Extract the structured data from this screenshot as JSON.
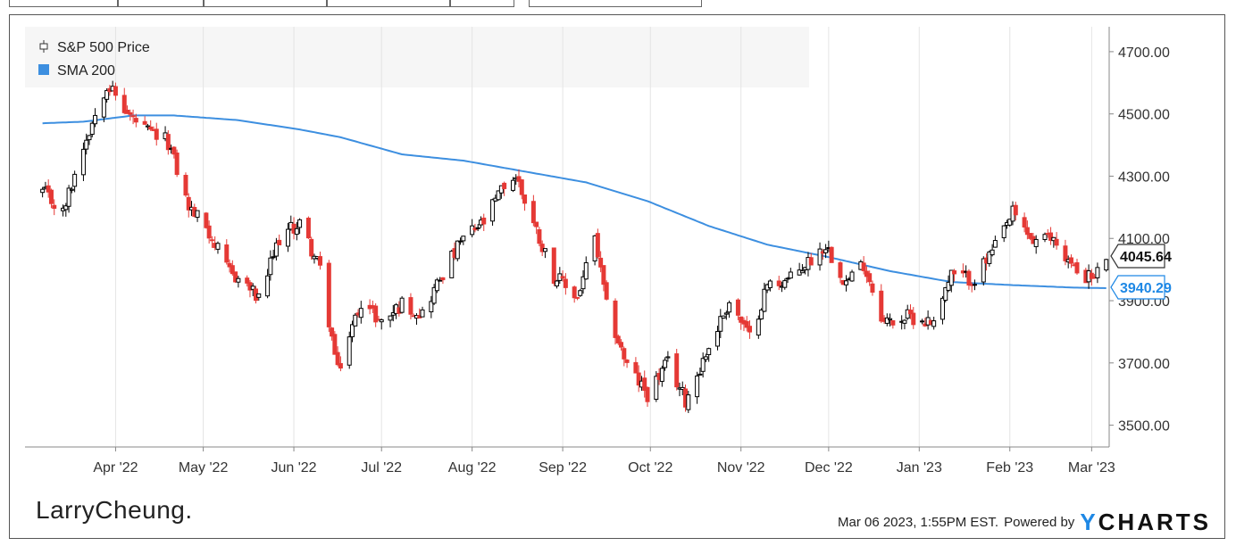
{
  "chart_data": {
    "type": "candlestick",
    "title": "",
    "series": [
      {
        "name": "S&P 500 Price",
        "kind": "candlestick",
        "color_up": "#000000",
        "color_down": "#e53935"
      },
      {
        "name": "SMA 200",
        "kind": "line",
        "color": "#3d8fe0"
      }
    ],
    "x_tick_labels": [
      "Apr '22",
      "May '22",
      "Jun '22",
      "Jul '22",
      "Aug '22",
      "Sep '22",
      "Oct '22",
      "Nov '22",
      "Dec '22",
      "Jan '23",
      "Feb '23",
      "Mar '23"
    ],
    "y_tick_labels": [
      "3500.00",
      "3700.00",
      "3900.00",
      "4100.00",
      "4300.00",
      "4500.00",
      "4700.00"
    ],
    "ylim": [
      3430,
      4780
    ],
    "legend_position": "top-left",
    "price_path": [
      [
        "2022-03-07",
        4250
      ],
      [
        "2022-03-14",
        4180
      ],
      [
        "2022-03-21",
        4400
      ],
      [
        "2022-03-29",
        4600
      ],
      [
        "2022-04-05",
        4500
      ],
      [
        "2022-04-12",
        4440
      ],
      [
        "2022-04-19",
        4410
      ],
      [
        "2022-04-26",
        4200
      ],
      [
        "2022-05-02",
        4140
      ],
      [
        "2022-05-09",
        4000
      ],
      [
        "2022-05-16",
        3950
      ],
      [
        "2022-05-20",
        3900
      ],
      [
        "2022-05-27",
        4100
      ],
      [
        "2022-06-03",
        4150
      ],
      [
        "2022-06-10",
        4000
      ],
      [
        "2022-06-16",
        3670
      ],
      [
        "2022-06-24",
        3900
      ],
      [
        "2022-07-01",
        3830
      ],
      [
        "2022-07-08",
        3890
      ],
      [
        "2022-07-15",
        3860
      ],
      [
        "2022-07-22",
        3990
      ],
      [
        "2022-07-29",
        4100
      ],
      [
        "2022-08-05",
        4150
      ],
      [
        "2022-08-12",
        4270
      ],
      [
        "2022-08-16",
        4300
      ],
      [
        "2022-08-22",
        4150
      ],
      [
        "2022-08-29",
        3980
      ],
      [
        "2022-09-06",
        3910
      ],
      [
        "2022-09-12",
        4100
      ],
      [
        "2022-09-16",
        3880
      ],
      [
        "2022-09-23",
        3690
      ],
      [
        "2022-09-30",
        3600
      ],
      [
        "2022-10-07",
        3700
      ],
      [
        "2022-10-13",
        3580
      ],
      [
        "2022-10-21",
        3750
      ],
      [
        "2022-10-28",
        3900
      ],
      [
        "2022-11-04",
        3780
      ],
      [
        "2022-11-10",
        3950
      ],
      [
        "2022-11-18",
        3970
      ],
      [
        "2022-11-30",
        4080
      ],
      [
        "2022-12-07",
        3960
      ],
      [
        "2022-12-13",
        4020
      ],
      [
        "2022-12-20",
        3830
      ],
      [
        "2022-12-29",
        3850
      ],
      [
        "2023-01-05",
        3830
      ],
      [
        "2023-01-12",
        3980
      ],
      [
        "2023-01-20",
        3970
      ],
      [
        "2023-01-27",
        4070
      ],
      [
        "2023-02-02",
        4180
      ],
      [
        "2023-02-09",
        4090
      ],
      [
        "2023-02-16",
        4100
      ],
      [
        "2023-02-23",
        4000
      ],
      [
        "2023-03-02",
        3970
      ],
      [
        "2023-03-06",
        4045
      ]
    ],
    "sma_200": [
      [
        "2022-03-07",
        4470
      ],
      [
        "2022-03-21",
        4475
      ],
      [
        "2022-04-07",
        4495
      ],
      [
        "2022-04-21",
        4495
      ],
      [
        "2022-05-13",
        4480
      ],
      [
        "2022-06-03",
        4450
      ],
      [
        "2022-06-17",
        4425
      ],
      [
        "2022-07-08",
        4370
      ],
      [
        "2022-07-29",
        4350
      ],
      [
        "2022-08-19",
        4315
      ],
      [
        "2022-09-09",
        4280
      ],
      [
        "2022-09-30",
        4220
      ],
      [
        "2022-10-21",
        4140
      ],
      [
        "2022-11-10",
        4080
      ],
      [
        "2022-12-01",
        4040
      ],
      [
        "2022-12-22",
        3995
      ],
      [
        "2023-01-12",
        3960
      ],
      [
        "2023-02-02",
        3950
      ],
      [
        "2023-02-23",
        3942
      ],
      [
        "2023-03-06",
        3940.29
      ]
    ],
    "last_price_label": "4045.64",
    "last_sma_label": "3940.29",
    "price_label_color": "#000000",
    "sma_label_color": "#1e88e5"
  },
  "branding": {
    "logo_text": "LarryCheung.",
    "timestamp": "Mar 06 2023, 1:55PM EST.",
    "powered_by": "Powered by",
    "provider_y": "Y",
    "provider_rest": "CHARTS"
  }
}
